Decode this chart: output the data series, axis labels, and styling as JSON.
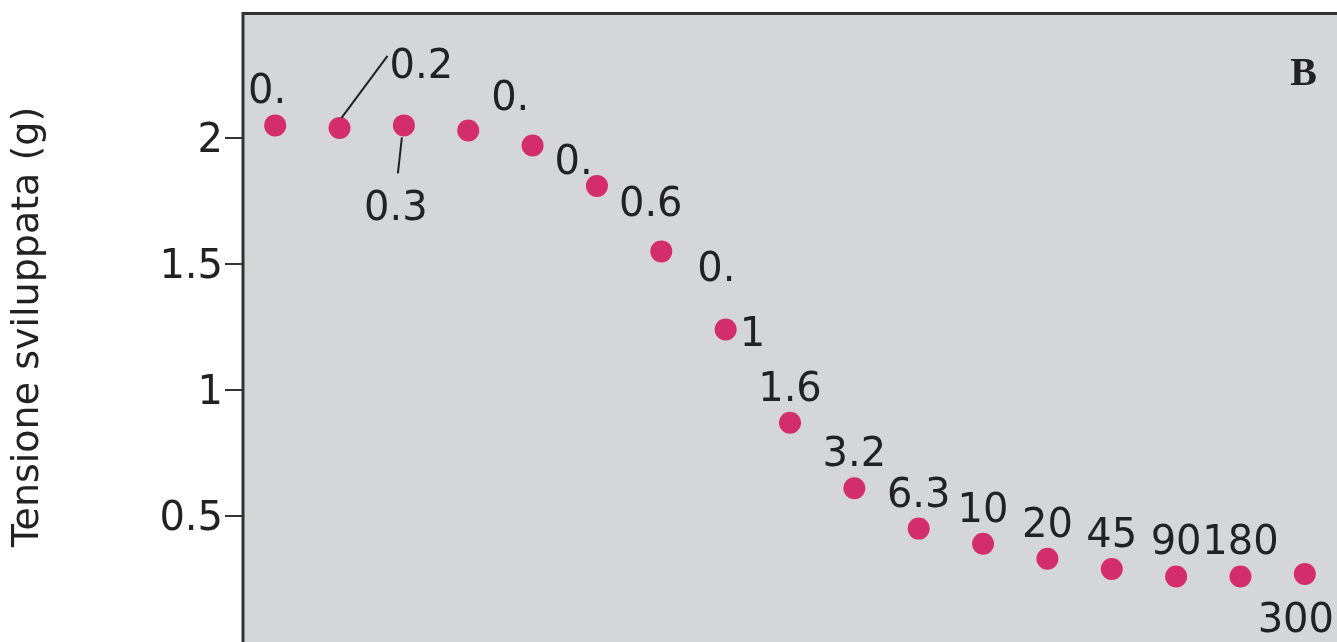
{
  "chart_data": {
    "type": "scatter",
    "ylabel": "Tensione sviluppata (g)",
    "annotations": [
      "B",
      "0.",
      "0.2",
      "0.3",
      "0.",
      "0.",
      "0.6",
      "0.",
      "1",
      "1.6",
      "3.2",
      "6.3",
      "10",
      "20",
      "45",
      "90",
      "180",
      "300"
    ],
    "categories": [
      null,
      null,
      null,
      null,
      null,
      null,
      null,
      null,
      null,
      null,
      null,
      null,
      null,
      null,
      null,
      null,
      null
    ],
    "series": [
      {
        "color": "#d42d6c",
        "values": [
          2.05,
          2.04,
          2.05,
          2.03,
          1.97,
          1.81,
          1.55,
          1.24,
          0.87,
          0.61,
          0.45,
          0.39,
          0.33,
          0.29,
          0.26,
          0.26,
          0.27
        ]
      }
    ],
    "ylim": [
      0,
      2.5
    ],
    "yticks": [
      0.5,
      1,
      1.5,
      2
    ],
    "grid": false,
    "legend": false,
    "marker": "circle"
  }
}
